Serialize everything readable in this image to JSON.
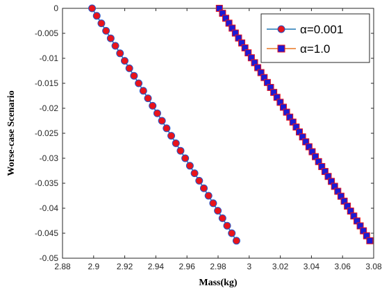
{
  "chart_data": {
    "type": "line",
    "xlabel": "Mass(kg)",
    "ylabel": "Worse-case Scenario",
    "xlim": [
      2.88,
      3.08
    ],
    "ylim": [
      -0.05,
      0
    ],
    "xticks": [
      "2.88",
      "2.9",
      "2.92",
      "2.94",
      "2.96",
      "2.98",
      "3",
      "3.02",
      "3.04",
      "3.06",
      "3.08"
    ],
    "yticks": [
      "0",
      "-0.005",
      "-0.01",
      "-0.015",
      "-0.02",
      "-0.025",
      "-0.03",
      "-0.035",
      "-0.04",
      "-0.045",
      "-0.05"
    ],
    "grid": false,
    "legend_position": "top-right",
    "series": [
      {
        "name": "α=0.001",
        "marker": "circle",
        "line_color": "#1f77b4",
        "marker_fill": "#e8141b",
        "marker_edge": "#2255c8",
        "x_start": 2.899,
        "x_end": 2.9918,
        "y_start": 0,
        "y_end": -0.0465,
        "points": 32
      },
      {
        "name": "α=1.0",
        "marker": "square",
        "line_color": "#e87722",
        "marker_fill": "#1b1bd4",
        "marker_edge": "#e8141b",
        "x_start": 2.9808,
        "x_end": 3.0775,
        "y_start": 0,
        "y_end": -0.0465,
        "points": 48
      }
    ]
  }
}
